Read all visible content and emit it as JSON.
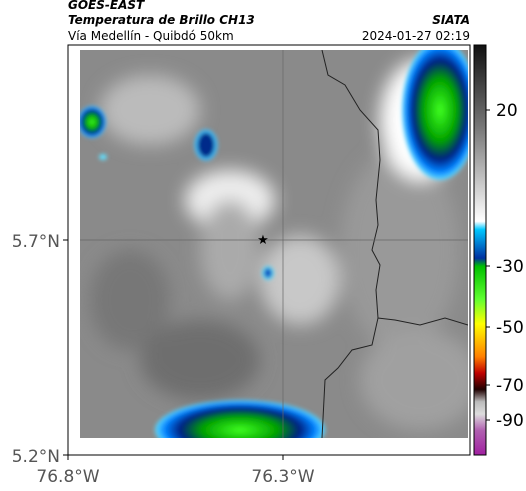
{
  "header": {
    "satellite": "GOES-EAST",
    "title": "Temperatura de Brillo CH13",
    "route": "Vía Medellín - Quibdó 50km",
    "organization": "SIATA",
    "datetime": "2024-01-27 02:19"
  },
  "map": {
    "yticks": [
      "5.7°N",
      "5.2°N"
    ],
    "xticks": [
      "76.8°W",
      "76.3°W"
    ]
  },
  "colorbar": {
    "ticks": [
      "20",
      "-30",
      "-50",
      "-70",
      "-90"
    ]
  }
}
